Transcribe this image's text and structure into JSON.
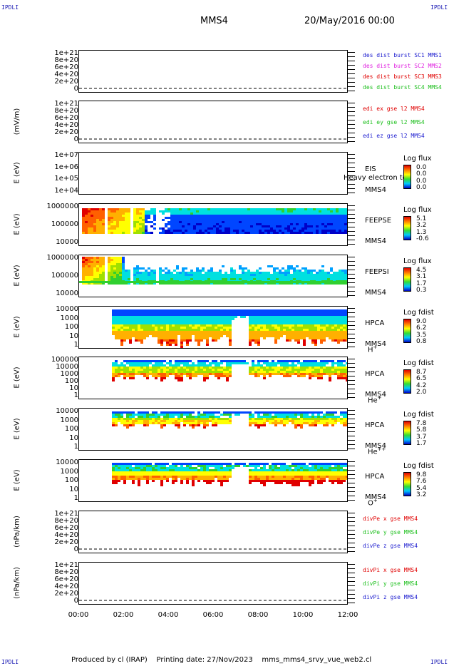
{
  "header": {
    "corner_label": "IPDLI",
    "spacecraft": "MMS4",
    "datetime": "20/May/2016 00:00"
  },
  "x_axis": {
    "ticks": [
      "00:00",
      "02:00",
      "04:00",
      "06:00",
      "08:00",
      "10:00",
      "12:00"
    ]
  },
  "footer": {
    "produced_by": "Produced by cl (IRAP)",
    "printing_date": "Printing date: 27/Nov/2023",
    "script": "mms_mms4_srvy_vue_web2.cl"
  },
  "chart_data": [
    {
      "type": "line",
      "panel": "des_dist_burst",
      "ylabel": "",
      "yticks": [
        "1e+21",
        "8e+20",
        "6e+20",
        "4e+20",
        "2e+20",
        "0"
      ],
      "series": [
        {
          "name": "des dist burst SC1 MMS1",
          "color": "#2020d0"
        },
        {
          "name": "des dist burst SC2 MMS2",
          "color": "#e020e0"
        },
        {
          "name": "des dist burst SC3 MMS3",
          "color": "#e00000"
        },
        {
          "name": "des dist burst SC4 MMS4",
          "color": "#20c020"
        }
      ]
    },
    {
      "type": "line",
      "panel": "edi_e",
      "ylabel": "(mV/m)",
      "yticks": [
        "1e+21",
        "8e+20",
        "6e+20",
        "4e+20",
        "2e+20",
        "0"
      ],
      "series": [
        {
          "name": "edi ex gse l2 MMS4",
          "color": "#e00000"
        },
        {
          "name": "edi ey gse l2 MMS4",
          "color": "#20c020"
        },
        {
          "name": "edi ez gse l2 MMS4",
          "color": "#2020d0"
        }
      ]
    },
    {
      "type": "heatmap",
      "panel": "EIS",
      "ylabel": "E (eV)",
      "yticks": [
        "1e+07",
        "1e+06",
        "1e+05",
        "1e+04"
      ],
      "instrument": "EIS",
      "species": "Heavy electron tof",
      "sc": "MMS4",
      "colorbar": {
        "title": "Log flux",
        "values": [
          "0.0",
          "0.0",
          "0.0",
          "0.0"
        ]
      }
    },
    {
      "type": "heatmap",
      "panel": "FEEPSE",
      "ylabel": "E (eV)",
      "yticks": [
        "1000000",
        "100000",
        "10000"
      ],
      "instrument": "FEEPSE",
      "sc": "MMS4",
      "colorbar": {
        "title": "Log flux",
        "values": [
          "5.1",
          "3.2",
          "1.3",
          "-0.6"
        ]
      }
    },
    {
      "type": "heatmap",
      "panel": "FEEPSI",
      "ylabel": "E (eV)",
      "yticks": [
        "1000000",
        "100000",
        "10000"
      ],
      "instrument": "FEEPSI",
      "sc": "MMS4",
      "colorbar": {
        "title": "Log flux",
        "values": [
          "4.5",
          "3.1",
          "1.7",
          "0.3"
        ]
      }
    },
    {
      "type": "heatmap",
      "panel": "HPCA_H",
      "ylabel": "E (eV)",
      "yticks": [
        "10000",
        "1000",
        "100",
        "10",
        "1"
      ],
      "instrument": "HPCA",
      "sc": "MMS4",
      "species": "H",
      "species_sup": "+",
      "colorbar": {
        "title": "Log fdist",
        "values": [
          "9.0",
          "6.2",
          "3.5",
          "0.8"
        ]
      }
    },
    {
      "type": "heatmap",
      "panel": "HPCA_He",
      "ylabel": "E (eV)",
      "yticks": [
        "100000",
        "10000",
        "1000",
        "100",
        "10",
        "1"
      ],
      "instrument": "HPCA",
      "sc": "MMS4",
      "species": "He",
      "species_sup": "+",
      "colorbar": {
        "title": "Log fdist",
        "values": [
          "8.7",
          "6.5",
          "4.2",
          "2.0"
        ]
      }
    },
    {
      "type": "heatmap",
      "panel": "HPCA_He2",
      "ylabel": "E (eV)",
      "yticks": [
        "10000",
        "1000",
        "100",
        "10",
        "1"
      ],
      "instrument": "HPCA",
      "sc": "MMS4",
      "species": "He",
      "species_sup": "++",
      "colorbar": {
        "title": "Log fdist",
        "values": [
          "7.8",
          "5.8",
          "3.7",
          "1.7"
        ]
      }
    },
    {
      "type": "heatmap",
      "panel": "HPCA_O",
      "ylabel": "E (eV)",
      "yticks": [
        "10000",
        "1000",
        "100",
        "10",
        "1"
      ],
      "instrument": "HPCA",
      "sc": "MMS4",
      "species": "O",
      "species_sup": "+",
      "colorbar": {
        "title": "Log fdist",
        "values": [
          "9.8",
          "7.6",
          "5.4",
          "3.2"
        ]
      }
    },
    {
      "type": "line",
      "panel": "divPe",
      "ylabel": "(nPa/km)",
      "yticks": [
        "1e+21",
        "8e+20",
        "6e+20",
        "4e+20",
        "2e+20",
        "0"
      ],
      "series": [
        {
          "name": "divPe x gse MMS4",
          "color": "#e00000"
        },
        {
          "name": "divPe y gse MMS4",
          "color": "#20c020"
        },
        {
          "name": "divPe z gse MMS4",
          "color": "#2020d0"
        }
      ]
    },
    {
      "type": "line",
      "panel": "divPi",
      "ylabel": "(nPa/km)",
      "yticks": [
        "1e+21",
        "8e+20",
        "6e+20",
        "4e+20",
        "2e+20",
        "0"
      ],
      "series": [
        {
          "name": "divPi x gse MMS4",
          "color": "#e00000"
        },
        {
          "name": "divPi y gse MMS4",
          "color": "#20c020"
        },
        {
          "name": "divPi z gse MMS4",
          "color": "#2020d0"
        }
      ]
    }
  ]
}
